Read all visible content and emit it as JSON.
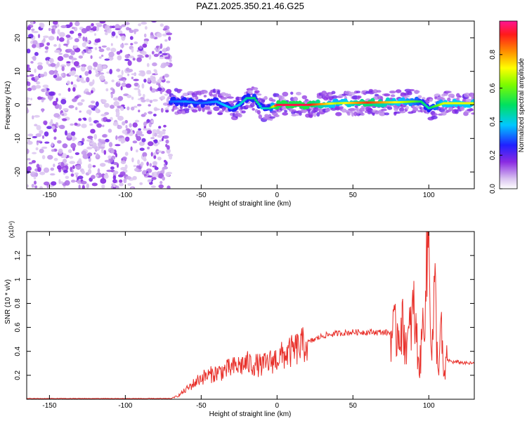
{
  "title": "PAZ1.2025.350.21.46.G25",
  "chart_data": [
    {
      "type": "heatmap",
      "title": "PAZ1.2025.350.21.46.G25",
      "xlabel": "Height of straight line (km)",
      "ylabel": "Frequency (Hz)",
      "xlim": [
        -165,
        130
      ],
      "ylim": [
        -25,
        25
      ],
      "xticks": [
        -150,
        -100,
        -50,
        0,
        50,
        100
      ],
      "yticks": [
        -20,
        -10,
        0,
        10,
        20
      ],
      "colorbar": {
        "label": "Normalized spectral amplitude",
        "range": [
          0,
          1
        ],
        "ticks": [
          "0.0",
          "0.2",
          "0.4",
          "0.6",
          "0.8"
        ]
      },
      "noise_region_x": [
        -165,
        -70
      ],
      "ridge": {
        "x": [
          -70,
          -60,
          -50,
          -40,
          -30,
          -25,
          -20,
          -15,
          -10,
          -5,
          0,
          20,
          40,
          60,
          80,
          90,
          95,
          100,
          110,
          130
        ],
        "frequency_hz": [
          1,
          1,
          0.5,
          1,
          -1,
          0,
          2,
          2,
          -1,
          -1,
          0,
          0,
          0.5,
          0.7,
          0.8,
          1,
          1,
          -1,
          0.5,
          0.5
        ],
        "amplitude": [
          0.3,
          0.35,
          0.3,
          0.35,
          0.4,
          0.4,
          0.45,
          0.5,
          0.4,
          0.45,
          0.95,
          0.95,
          0.65,
          0.9,
          0.7,
          0.6,
          0.5,
          0.45,
          0.7,
          0.7
        ]
      }
    },
    {
      "type": "line",
      "xlabel": "Height of straight line (km)",
      "ylabel": "SNR (10 * v/v)",
      "y_multiplier": "(x10⁴)",
      "xlim": [
        -165,
        130
      ],
      "ylim": [
        0,
        1.4
      ],
      "xticks": [
        -150,
        -100,
        -50,
        0,
        50,
        100
      ],
      "yticks": [
        0.2,
        0.4,
        0.6,
        0.8,
        1.0,
        1.2
      ],
      "series": [
        {
          "name": "SNR",
          "color": "#e8302a",
          "x": [
            -165,
            -150,
            -100,
            -70,
            -65,
            -60,
            -55,
            -50,
            -40,
            -30,
            -20,
            -10,
            0,
            10,
            20,
            30,
            40,
            50,
            60,
            70,
            78,
            82,
            86,
            90,
            94,
            96,
            98,
            100,
            102,
            104,
            106,
            108,
            110,
            112,
            116,
            120,
            125,
            130
          ],
          "y": [
            0.005,
            0.005,
            0.005,
            0.005,
            0.03,
            0.08,
            0.13,
            0.18,
            0.22,
            0.26,
            0.3,
            0.28,
            0.34,
            0.4,
            0.47,
            0.53,
            0.55,
            0.56,
            0.56,
            0.56,
            0.55,
            0.62,
            0.45,
            0.75,
            0.25,
            0.6,
            0.95,
            1.4,
            0.35,
            0.95,
            0.2,
            0.6,
            0.15,
            0.33,
            0.31,
            0.31,
            0.3,
            0.3
          ]
        }
      ]
    }
  ]
}
